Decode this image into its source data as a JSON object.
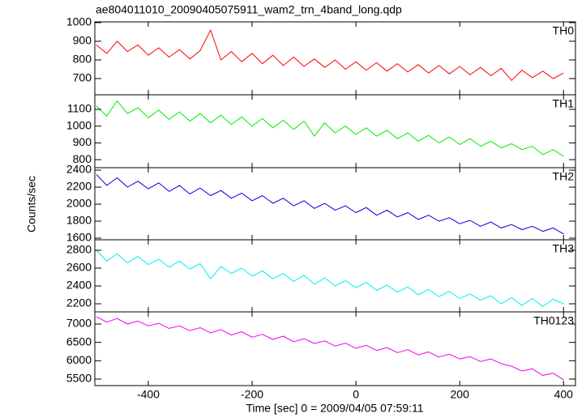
{
  "chart_data": {
    "type": "line",
    "title": "ae804011010_20090405075911_wam2_trn_4band_long.qdp",
    "xlabel": "Time [sec] 0 = 2009/04/05 07:59:11",
    "ylabel": "Counts/sec",
    "xlim": [
      -503,
      423
    ],
    "xticks": [
      -400,
      -200,
      0,
      200,
      400
    ],
    "x": [
      -500,
      -480,
      -460,
      -440,
      -420,
      -400,
      -380,
      -360,
      -340,
      -320,
      -300,
      -280,
      -260,
      -240,
      -220,
      -200,
      -180,
      -160,
      -140,
      -120,
      -100,
      -80,
      -60,
      -40,
      -20,
      0,
      20,
      40,
      60,
      80,
      100,
      120,
      140,
      160,
      180,
      200,
      220,
      240,
      260,
      280,
      300,
      320,
      340,
      360,
      380,
      400
    ],
    "panels": [
      {
        "name": "TH0",
        "color": "#ff0000",
        "ylim": [
          613,
          1004
        ],
        "yticks": [
          700,
          800,
          900,
          1000
        ],
        "values": [
          880,
          835,
          900,
          845,
          880,
          825,
          865,
          815,
          855,
          805,
          850,
          960,
          800,
          845,
          790,
          835,
          780,
          825,
          770,
          815,
          765,
          805,
          760,
          800,
          750,
          790,
          745,
          785,
          740,
          780,
          735,
          775,
          730,
          770,
          725,
          765,
          720,
          760,
          715,
          755,
          690,
          745,
          705,
          740,
          700,
          730
        ]
      },
      {
        "name": "TH1",
        "color": "#00ee00",
        "ylim": [
          752,
          1187
        ],
        "yticks": [
          800,
          900,
          1000,
          1100
        ],
        "values": [
          1120,
          1060,
          1150,
          1075,
          1110,
          1050,
          1095,
          1040,
          1085,
          1030,
          1075,
          1020,
          1065,
          1010,
          1055,
          1000,
          1045,
          990,
          1035,
          980,
          1030,
          940,
          1020,
          960,
          1000,
          950,
          990,
          940,
          975,
          925,
          960,
          910,
          945,
          900,
          935,
          890,
          925,
          880,
          910,
          870,
          895,
          860,
          880,
          830,
          860,
          820
        ]
      },
      {
        "name": "TH2",
        "color": "#0000dd",
        "ylim": [
          1581,
          2429
        ],
        "yticks": [
          1600,
          1800,
          2000,
          2200,
          2400
        ],
        "values": [
          2350,
          2220,
          2310,
          2200,
          2270,
          2180,
          2250,
          2150,
          2220,
          2120,
          2190,
          2100,
          2160,
          2070,
          2130,
          2040,
          2100,
          2010,
          2070,
          1980,
          2040,
          1950,
          2010,
          1930,
          1980,
          1900,
          1960,
          1870,
          1930,
          1850,
          1900,
          1820,
          1870,
          1800,
          1840,
          1770,
          1810,
          1740,
          1790,
          1720,
          1760,
          1700,
          1740,
          1680,
          1720,
          1650
        ]
      },
      {
        "name": "TH3",
        "color": "#00eeee",
        "ylim": [
          2109,
          2918
        ],
        "yticks": [
          2200,
          2400,
          2600,
          2800
        ],
        "values": [
          2800,
          2680,
          2760,
          2660,
          2730,
          2640,
          2700,
          2610,
          2680,
          2590,
          2650,
          2480,
          2620,
          2540,
          2600,
          2510,
          2570,
          2480,
          2540,
          2450,
          2520,
          2420,
          2490,
          2400,
          2460,
          2380,
          2440,
          2350,
          2410,
          2330,
          2390,
          2300,
          2360,
          2280,
          2340,
          2260,
          2310,
          2240,
          2290,
          2200,
          2270,
          2180,
          2260,
          2170,
          2250,
          2200
        ]
      },
      {
        "name": "TH0123",
        "color": "#ee00ee",
        "ylim": [
          5323,
          7331
        ],
        "yticks": [
          5500,
          6000,
          6500,
          7000
        ],
        "values": [
          7200,
          7050,
          7150,
          7000,
          7080,
          6950,
          7020,
          6880,
          6950,
          6820,
          6900,
          6760,
          6850,
          6700,
          6790,
          6640,
          6720,
          6580,
          6670,
          6520,
          6600,
          6470,
          6540,
          6400,
          6480,
          6340,
          6420,
          6280,
          6360,
          6220,
          6300,
          6160,
          6240,
          6100,
          6180,
          6050,
          6110,
          5980,
          6050,
          5920,
          5850,
          5720,
          5780,
          5600,
          5660,
          5480
        ]
      }
    ]
  }
}
